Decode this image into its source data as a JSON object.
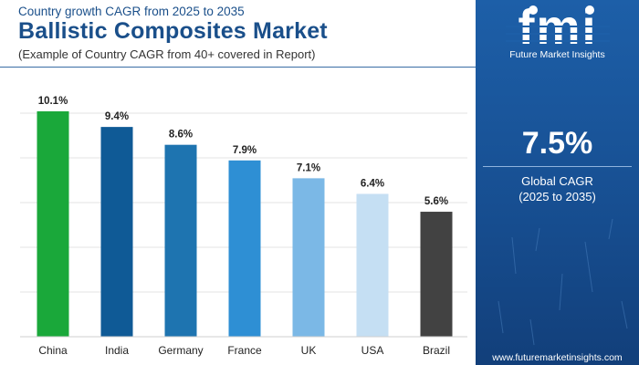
{
  "header": {
    "kicker": "Country growth CAGR from 2025 to 2035",
    "title": "Ballistic Composites Market",
    "subtitle": "(Example of Country CAGR from 40+ covered in Report)"
  },
  "brand": {
    "logo_letters": "fmi",
    "logo_name": "Future Market Insights",
    "url": "www.futuremarketinsights.com"
  },
  "highlight": {
    "value": "7.5%",
    "label_line1": "Global CAGR",
    "label_line2": "(2025 to 2035)"
  },
  "colors": {
    "title": "#1a4f8a",
    "panel": "#1d5fa8"
  },
  "chart_data": {
    "type": "bar",
    "categories": [
      "China",
      "India",
      "Germany",
      "France",
      "UK",
      "USA",
      "Brazil"
    ],
    "values": [
      10.1,
      9.4,
      8.6,
      7.9,
      7.1,
      6.4,
      5.6
    ],
    "value_labels": [
      "10.1%",
      "9.4%",
      "8.6%",
      "7.9%",
      "7.1%",
      "6.4%",
      "5.6%"
    ],
    "colors": [
      "#1aa83a",
      "#0f5a96",
      "#1e74b0",
      "#2e8fd4",
      "#7bb8e6",
      "#c5dff3",
      "#424242"
    ],
    "ylim": [
      0,
      10.1
    ],
    "grid": true,
    "title": "",
    "xlabel": "",
    "ylabel": ""
  }
}
